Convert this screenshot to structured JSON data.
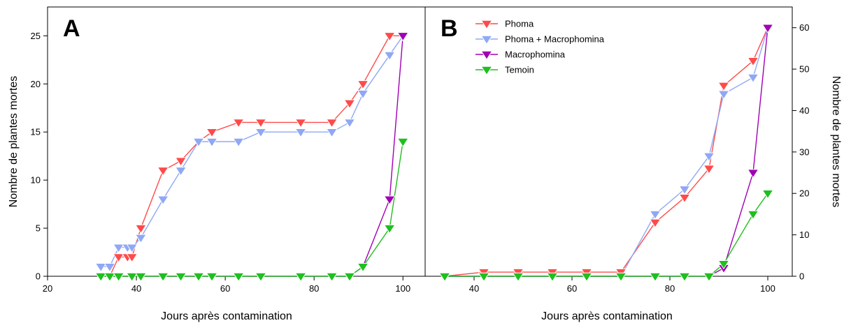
{
  "legend": {
    "placement": "top-left of panel B",
    "entries": [
      "Phoma",
      "Phoma + Macrophomina",
      "Macrophomina",
      "Temoin"
    ]
  },
  "series_colors": {
    "Phoma": "#ff4a4a",
    "Phoma + Macrophomina": "#8fa8f5",
    "Macrophomina": "#a000b4",
    "Temoin": "#1fbf1f"
  },
  "chart_data": [
    {
      "type": "line",
      "panel_label": "A",
      "xlabel": "Jours après contamination",
      "ylabel": "Nombre de plantes mortes",
      "xlim": [
        20,
        105
      ],
      "ylim": [
        0,
        28
      ],
      "xticks": [
        20,
        40,
        60,
        80,
        100
      ],
      "yticks": [
        0,
        5,
        10,
        15,
        20,
        25
      ],
      "y_axis_side": "left",
      "series": [
        {
          "name": "Phoma",
          "x": [
            32,
            34,
            36,
            38,
            39,
            41,
            46,
            50,
            54,
            57,
            63,
            68,
            77,
            84,
            88,
            91,
            97,
            100
          ],
          "y": [
            0,
            0,
            2,
            2,
            2,
            5,
            11,
            12,
            14,
            15,
            16,
            16,
            16,
            16,
            18,
            20,
            25,
            25
          ]
        },
        {
          "name": "Phoma + Macrophomina",
          "x": [
            32,
            34,
            36,
            38,
            39,
            41,
            46,
            50,
            54,
            57,
            63,
            68,
            77,
            84,
            88,
            91,
            97,
            100
          ],
          "y": [
            1,
            1,
            3,
            3,
            3,
            4,
            8,
            11,
            14,
            14,
            14,
            15,
            15,
            15,
            16,
            19,
            23,
            25
          ]
        },
        {
          "name": "Macrophomina",
          "x": [
            32,
            34,
            36,
            39,
            41,
            46,
            50,
            54,
            57,
            63,
            68,
            77,
            84,
            88,
            91,
            97,
            100
          ],
          "y": [
            0,
            0,
            0,
            0,
            0,
            0,
            0,
            0,
            0,
            0,
            0,
            0,
            0,
            0,
            1,
            8,
            25
          ]
        },
        {
          "name": "Temoin",
          "x": [
            32,
            34,
            36,
            39,
            41,
            46,
            50,
            54,
            57,
            63,
            68,
            77,
            84,
            88,
            91,
            97,
            100
          ],
          "y": [
            0,
            0,
            0,
            0,
            0,
            0,
            0,
            0,
            0,
            0,
            0,
            0,
            0,
            0,
            1,
            5,
            14
          ]
        }
      ]
    },
    {
      "type": "line",
      "panel_label": "B",
      "xlabel": "Jours après contamination",
      "ylabel": "Nombre de plantes mortes",
      "xlim": [
        30,
        105
      ],
      "ylim": [
        0,
        65
      ],
      "xticks": [
        40,
        60,
        80,
        100
      ],
      "yticks": [
        0,
        10,
        20,
        30,
        40,
        50,
        60
      ],
      "y_axis_side": "right",
      "series": [
        {
          "name": "Phoma",
          "x": [
            34,
            42,
            49,
            56,
            63,
            70,
            77,
            83,
            88,
            91,
            97,
            100
          ],
          "y": [
            0,
            1,
            1,
            1,
            1,
            1,
            13,
            19,
            26,
            46,
            52,
            60
          ]
        },
        {
          "name": "Phoma + Macrophomina",
          "x": [
            34,
            42,
            49,
            56,
            63,
            70,
            77,
            83,
            88,
            91,
            97,
            100
          ],
          "y": [
            0,
            0,
            0,
            0,
            0,
            0,
            15,
            21,
            29,
            44,
            48,
            60
          ]
        },
        {
          "name": "Macrophomina",
          "x": [
            34,
            42,
            49,
            56,
            63,
            70,
            77,
            83,
            88,
            91,
            97,
            100
          ],
          "y": [
            0,
            0,
            0,
            0,
            0,
            0,
            0,
            0,
            0,
            2,
            25,
            60
          ]
        },
        {
          "name": "Temoin",
          "x": [
            34,
            42,
            49,
            56,
            63,
            70,
            77,
            83,
            88,
            91,
            97,
            100
          ],
          "y": [
            0,
            0,
            0,
            0,
            0,
            0,
            0,
            0,
            0,
            3,
            15,
            20
          ]
        }
      ]
    }
  ]
}
